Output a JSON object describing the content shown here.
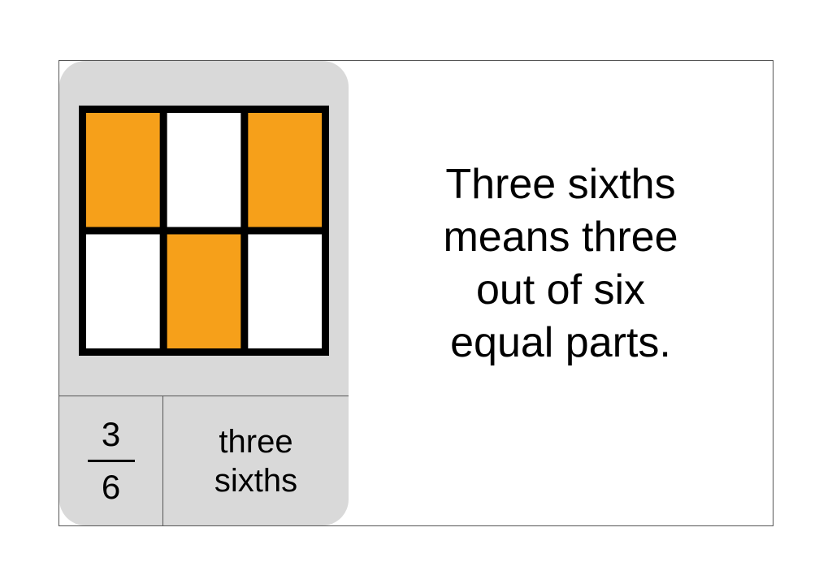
{
  "card": {
    "background_color": "#d9d9d9",
    "grid": {
      "rows": 2,
      "cols": 3,
      "cell_states": [
        [
          true,
          false,
          true
        ],
        [
          false,
          true,
          false
        ]
      ],
      "fill_color": "#f6a01a",
      "empty_color": "#ffffff",
      "stroke_color": "#000000",
      "stroke_width": 9,
      "outer_stroke_width": 9,
      "svg_size": 308
    },
    "fraction": {
      "numerator": "3",
      "denominator": "6"
    },
    "words": "three\nsixths"
  },
  "explanation": "Three sixths\nmeans three\nout of six\nequal parts.",
  "frame": {
    "border_color": "#555555",
    "background_color": "#ffffff"
  }
}
